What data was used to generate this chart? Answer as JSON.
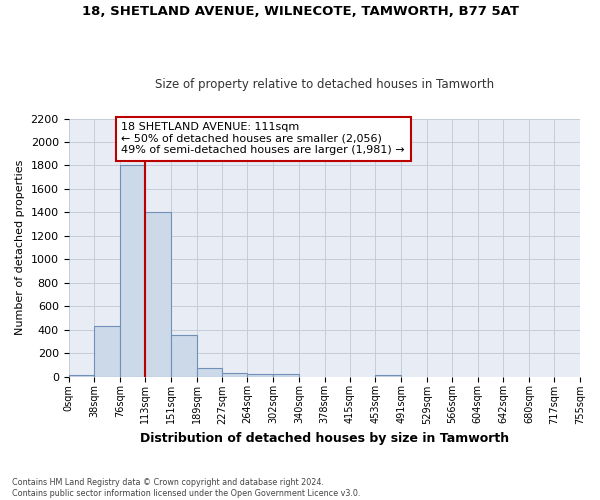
{
  "title1": "18, SHETLAND AVENUE, WILNECOTE, TAMWORTH, B77 5AT",
  "title2": "Size of property relative to detached houses in Tamworth",
  "xlabel": "Distribution of detached houses by size in Tamworth",
  "ylabel": "Number of detached properties",
  "bin_edges": [
    0,
    38,
    76,
    113,
    151,
    189,
    227,
    264,
    302,
    340,
    378,
    415,
    453,
    491,
    529,
    566,
    604,
    642,
    680,
    717,
    755
  ],
  "bar_heights": [
    12,
    430,
    1800,
    1400,
    350,
    75,
    30,
    20,
    25,
    0,
    0,
    0,
    15,
    0,
    0,
    0,
    0,
    0,
    0,
    0
  ],
  "bar_color": "#ccd9e8",
  "bar_edgecolor": "#7090b8",
  "vline_x": 113,
  "vline_color": "#bb0000",
  "annotation_line1": "18 SHETLAND AVENUE: 111sqm",
  "annotation_line2": "← 50% of detached houses are smaller (2,056)",
  "annotation_line3": "49% of semi-detached houses are larger (1,981) →",
  "annotation_box_facecolor": "#ffffff",
  "annotation_box_edgecolor": "#bb0000",
  "ylim": [
    0,
    2200
  ],
  "yticks": [
    0,
    200,
    400,
    600,
    800,
    1000,
    1200,
    1400,
    1600,
    1800,
    2000,
    2200
  ],
  "grid_color": "#c5cdd8",
  "bg_color": "#e8ecf4",
  "footnote": "Contains HM Land Registry data © Crown copyright and database right 2024.\nContains public sector information licensed under the Open Government Licence v3.0."
}
